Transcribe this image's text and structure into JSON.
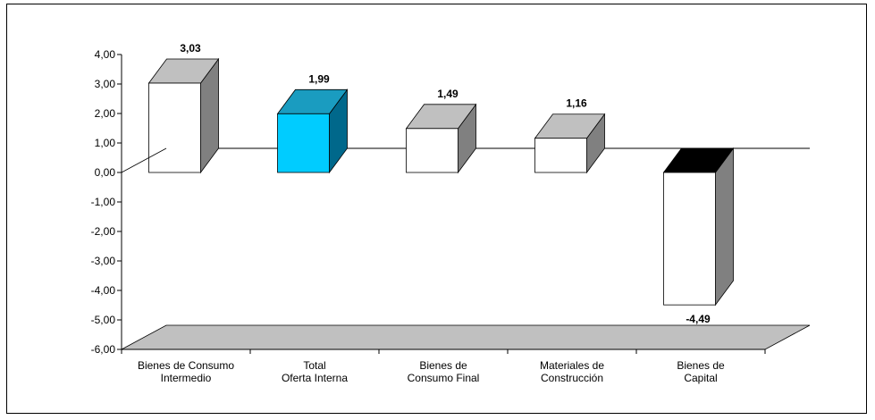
{
  "chart_data": {
    "type": "bar",
    "title": "",
    "xlabel": "",
    "ylabel": "",
    "ylim": [
      -6,
      4
    ],
    "y_ticks": [
      "-6,00",
      "-5,00",
      "-4,00",
      "-3,00",
      "-2,00",
      "-1,00",
      "0,00",
      "1,00",
      "2,00",
      "3,00",
      "4,00"
    ],
    "categories": [
      [
        "Bienes de Consumo",
        "Intermedio"
      ],
      [
        "Total",
        "Oferta Interna"
      ],
      [
        "Bienes de",
        "Consumo Final"
      ],
      [
        "Materiales de",
        "Construcción"
      ],
      [
        "Bienes de",
        "Capital"
      ]
    ],
    "values": [
      3.03,
      1.99,
      1.49,
      1.16,
      -4.49
    ],
    "value_labels": [
      "3,03",
      "1,99",
      "1,49",
      "1,16",
      "-4,49"
    ],
    "style": "3d-column",
    "grid": false,
    "colors": {
      "bar_default": "#ffffff",
      "bar_highlight": "#00ccff",
      "side_default": "#808080",
      "side_highlight": "#00688b",
      "top_default": "#c0c0c0",
      "top_highlight": "#1a9cc0",
      "top_negative": "#000000",
      "floor": "#c0c0c0"
    },
    "highlight_index": 1
  }
}
